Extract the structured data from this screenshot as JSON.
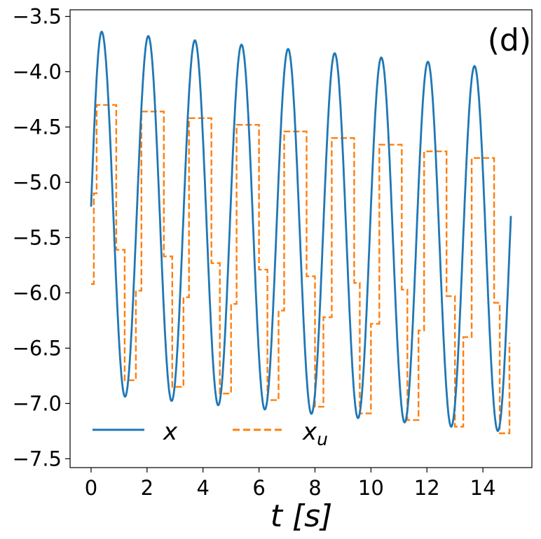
{
  "chart_data": {
    "type": "line",
    "panel_label": "(d)",
    "xlabel": "t [s]",
    "ylabel": "",
    "xlim": [
      -0.75,
      15.75
    ],
    "ylim": [
      -7.58,
      -3.44
    ],
    "xticks": [
      0,
      2,
      4,
      6,
      8,
      10,
      12,
      14
    ],
    "xtick_labels": [
      "0",
      "2",
      "4",
      "6",
      "8",
      "10",
      "12",
      "14"
    ],
    "yticks": [
      -3.5,
      -4.0,
      -4.5,
      -5.0,
      -5.5,
      -6.0,
      -6.5,
      -7.0,
      -7.5
    ],
    "ytick_labels": [
      "−3.5",
      "−4.0",
      "−4.5",
      "−5.0",
      "−5.5",
      "−6.0",
      "−6.5",
      "−7.0",
      "−7.5"
    ],
    "grid": false,
    "legend_placement": "lower-center",
    "series": [
      {
        "name": "x",
        "legend_main": "x",
        "legend_sub": "",
        "color": "#1f77b4",
        "style": "solid",
        "model": {
          "t0": 0,
          "t1": 15,
          "period": 1.665,
          "phase_peak": 0.38,
          "center_start": -5.27,
          "center_slope": -0.0233,
          "amp_start": 1.64,
          "amp_slope": 0.0,
          "end_value": -5.82
        }
      },
      {
        "name": "x_u",
        "legend_main": "x",
        "legend_sub": "u",
        "color": "#ff7f0e",
        "style": "dashed",
        "x": [
          0.0,
          0.1,
          0.2,
          0.9,
          1.2,
          1.6,
          1.8,
          2.6,
          2.9,
          3.3,
          3.5,
          4.3,
          4.6,
          5.0,
          5.2,
          6.0,
          6.3,
          6.7,
          6.9,
          7.7,
          8.0,
          8.3,
          8.6,
          9.4,
          9.6,
          10.0,
          10.3,
          11.1,
          11.3,
          11.7,
          11.9,
          12.7,
          13.0,
          13.3,
          13.6,
          14.4,
          14.6
        ],
        "values": [
          -5.92,
          -5.1,
          -4.3,
          -5.61,
          -6.79,
          -5.98,
          -4.36,
          -5.67,
          -6.85,
          -6.04,
          -4.42,
          -5.73,
          -6.91,
          -6.1,
          -4.48,
          -5.79,
          -6.97,
          -6.16,
          -4.54,
          -5.85,
          -7.03,
          -6.22,
          -4.6,
          -5.91,
          -7.09,
          -6.28,
          -4.66,
          -5.97,
          -7.15,
          -6.34,
          -4.72,
          -6.03,
          -7.21,
          -6.4,
          -4.78,
          -6.09,
          -7.27
        ],
        "x_end": 14.95,
        "y_end": -6.45
      }
    ]
  }
}
